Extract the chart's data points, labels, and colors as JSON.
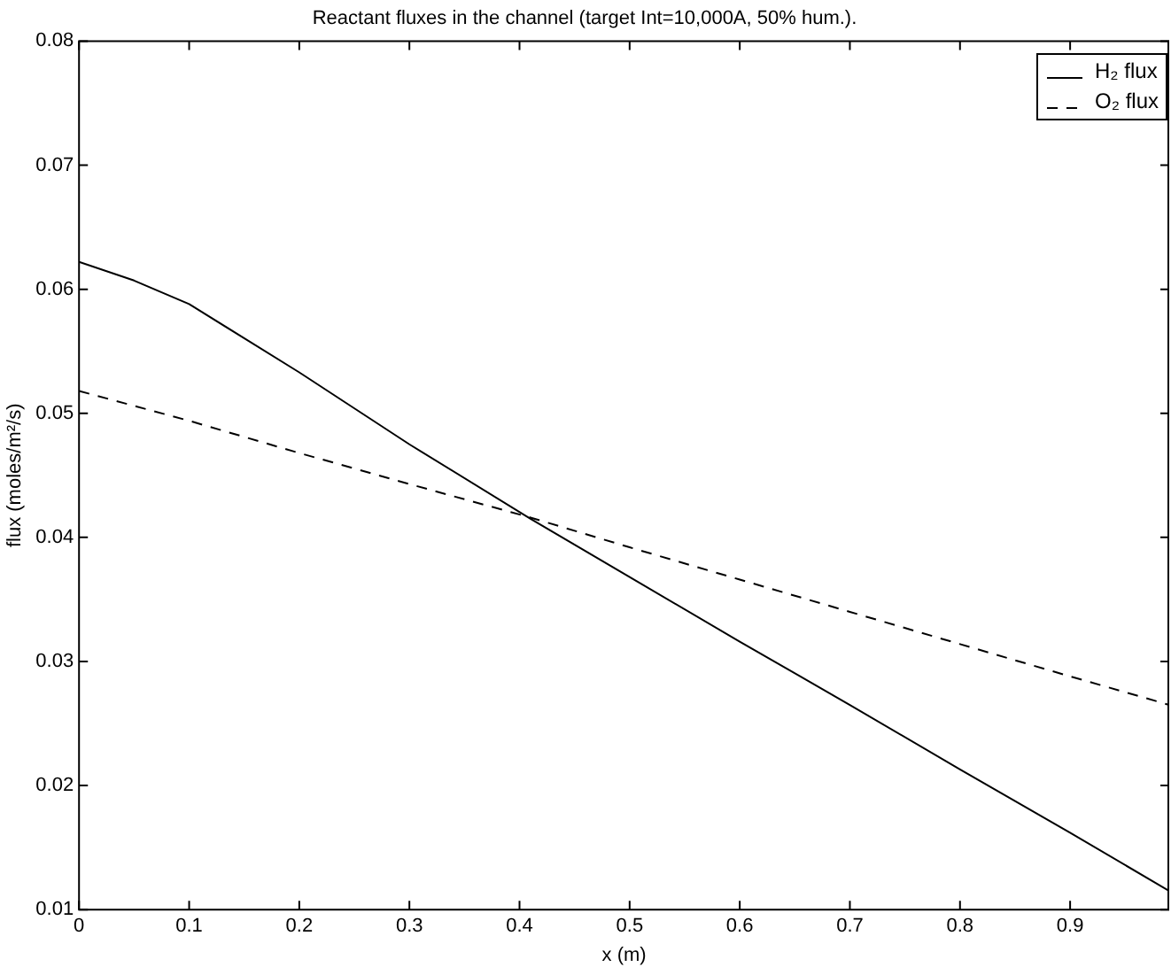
{
  "chart_data": {
    "type": "line",
    "title": "Reactant fluxes in the channel (target Int=10,000A, 50% hum.).",
    "xlabel": "x (m)",
    "ylabel": "flux (moles/m²/s)",
    "series": [
      {
        "name": "H₂ flux",
        "color": "#000000",
        "line_style": "solid",
        "x": [
          0,
          0.05,
          0.1,
          0.2,
          0.3,
          0.41,
          0.5,
          0.6,
          0.7,
          0.8,
          0.9,
          0.99
        ],
        "values": [
          0.0622,
          0.0607,
          0.0588,
          0.0533,
          0.0475,
          0.0415,
          0.0368,
          0.0316,
          0.0265,
          0.0213,
          0.0162,
          0.0115
        ]
      },
      {
        "name": "O₂ flux",
        "color": "#000000",
        "line_style": "dashed",
        "x": [
          0,
          0.1,
          0.2,
          0.3,
          0.41,
          0.5,
          0.6,
          0.7,
          0.8,
          0.9,
          0.99
        ],
        "values": [
          0.0518,
          0.0494,
          0.0468,
          0.0443,
          0.0416,
          0.0392,
          0.0366,
          0.034,
          0.0314,
          0.0288,
          0.0265
        ]
      }
    ],
    "xlim": [
      0,
      0.99
    ],
    "xticks": [
      0,
      0.1,
      0.2,
      0.3,
      0.4,
      0.5,
      0.6,
      0.7,
      0.8,
      0.9
    ],
    "ylim": [
      0.01,
      0.08
    ],
    "yticks": [
      0.01,
      0.02,
      0.03,
      0.04,
      0.05,
      0.06,
      0.07,
      0.08
    ],
    "grid": false,
    "legend": "top right",
    "marker": "none"
  }
}
